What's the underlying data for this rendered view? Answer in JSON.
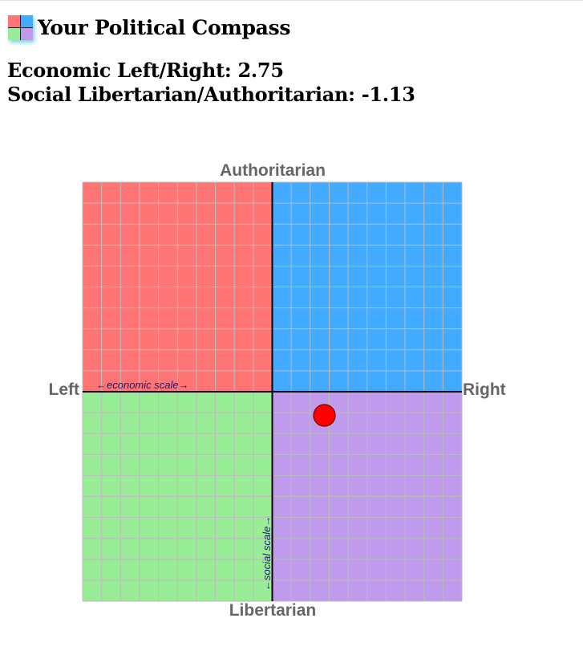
{
  "header": {
    "title": "Your Political Compass",
    "logo_icon": "compass-quadrant-icon"
  },
  "scores": {
    "economic": "Economic Left/Right: 2.75",
    "social": "Social Libertarian/Authoritarian: -1.13"
  },
  "colors": {
    "auth_left": "#ff7575",
    "auth_right": "#42aaff",
    "lib_left": "#9aed97",
    "lib_right": "#c09aed",
    "grid": "#bbbbbb",
    "point": "#ff0000"
  },
  "chart_data": {
    "type": "scatter",
    "xlim": [
      -10,
      10
    ],
    "ylim": [
      -10,
      10
    ],
    "grid": true,
    "labels": {
      "top": "Authoritarian",
      "bottom": "Libertarian",
      "left": "Left",
      "right": "Right"
    },
    "annotations": {
      "economic_scale": "←economic scale→",
      "social_scale": "←social scale→"
    },
    "points": [
      {
        "x": 2.75,
        "y": -1.13
      }
    ]
  }
}
